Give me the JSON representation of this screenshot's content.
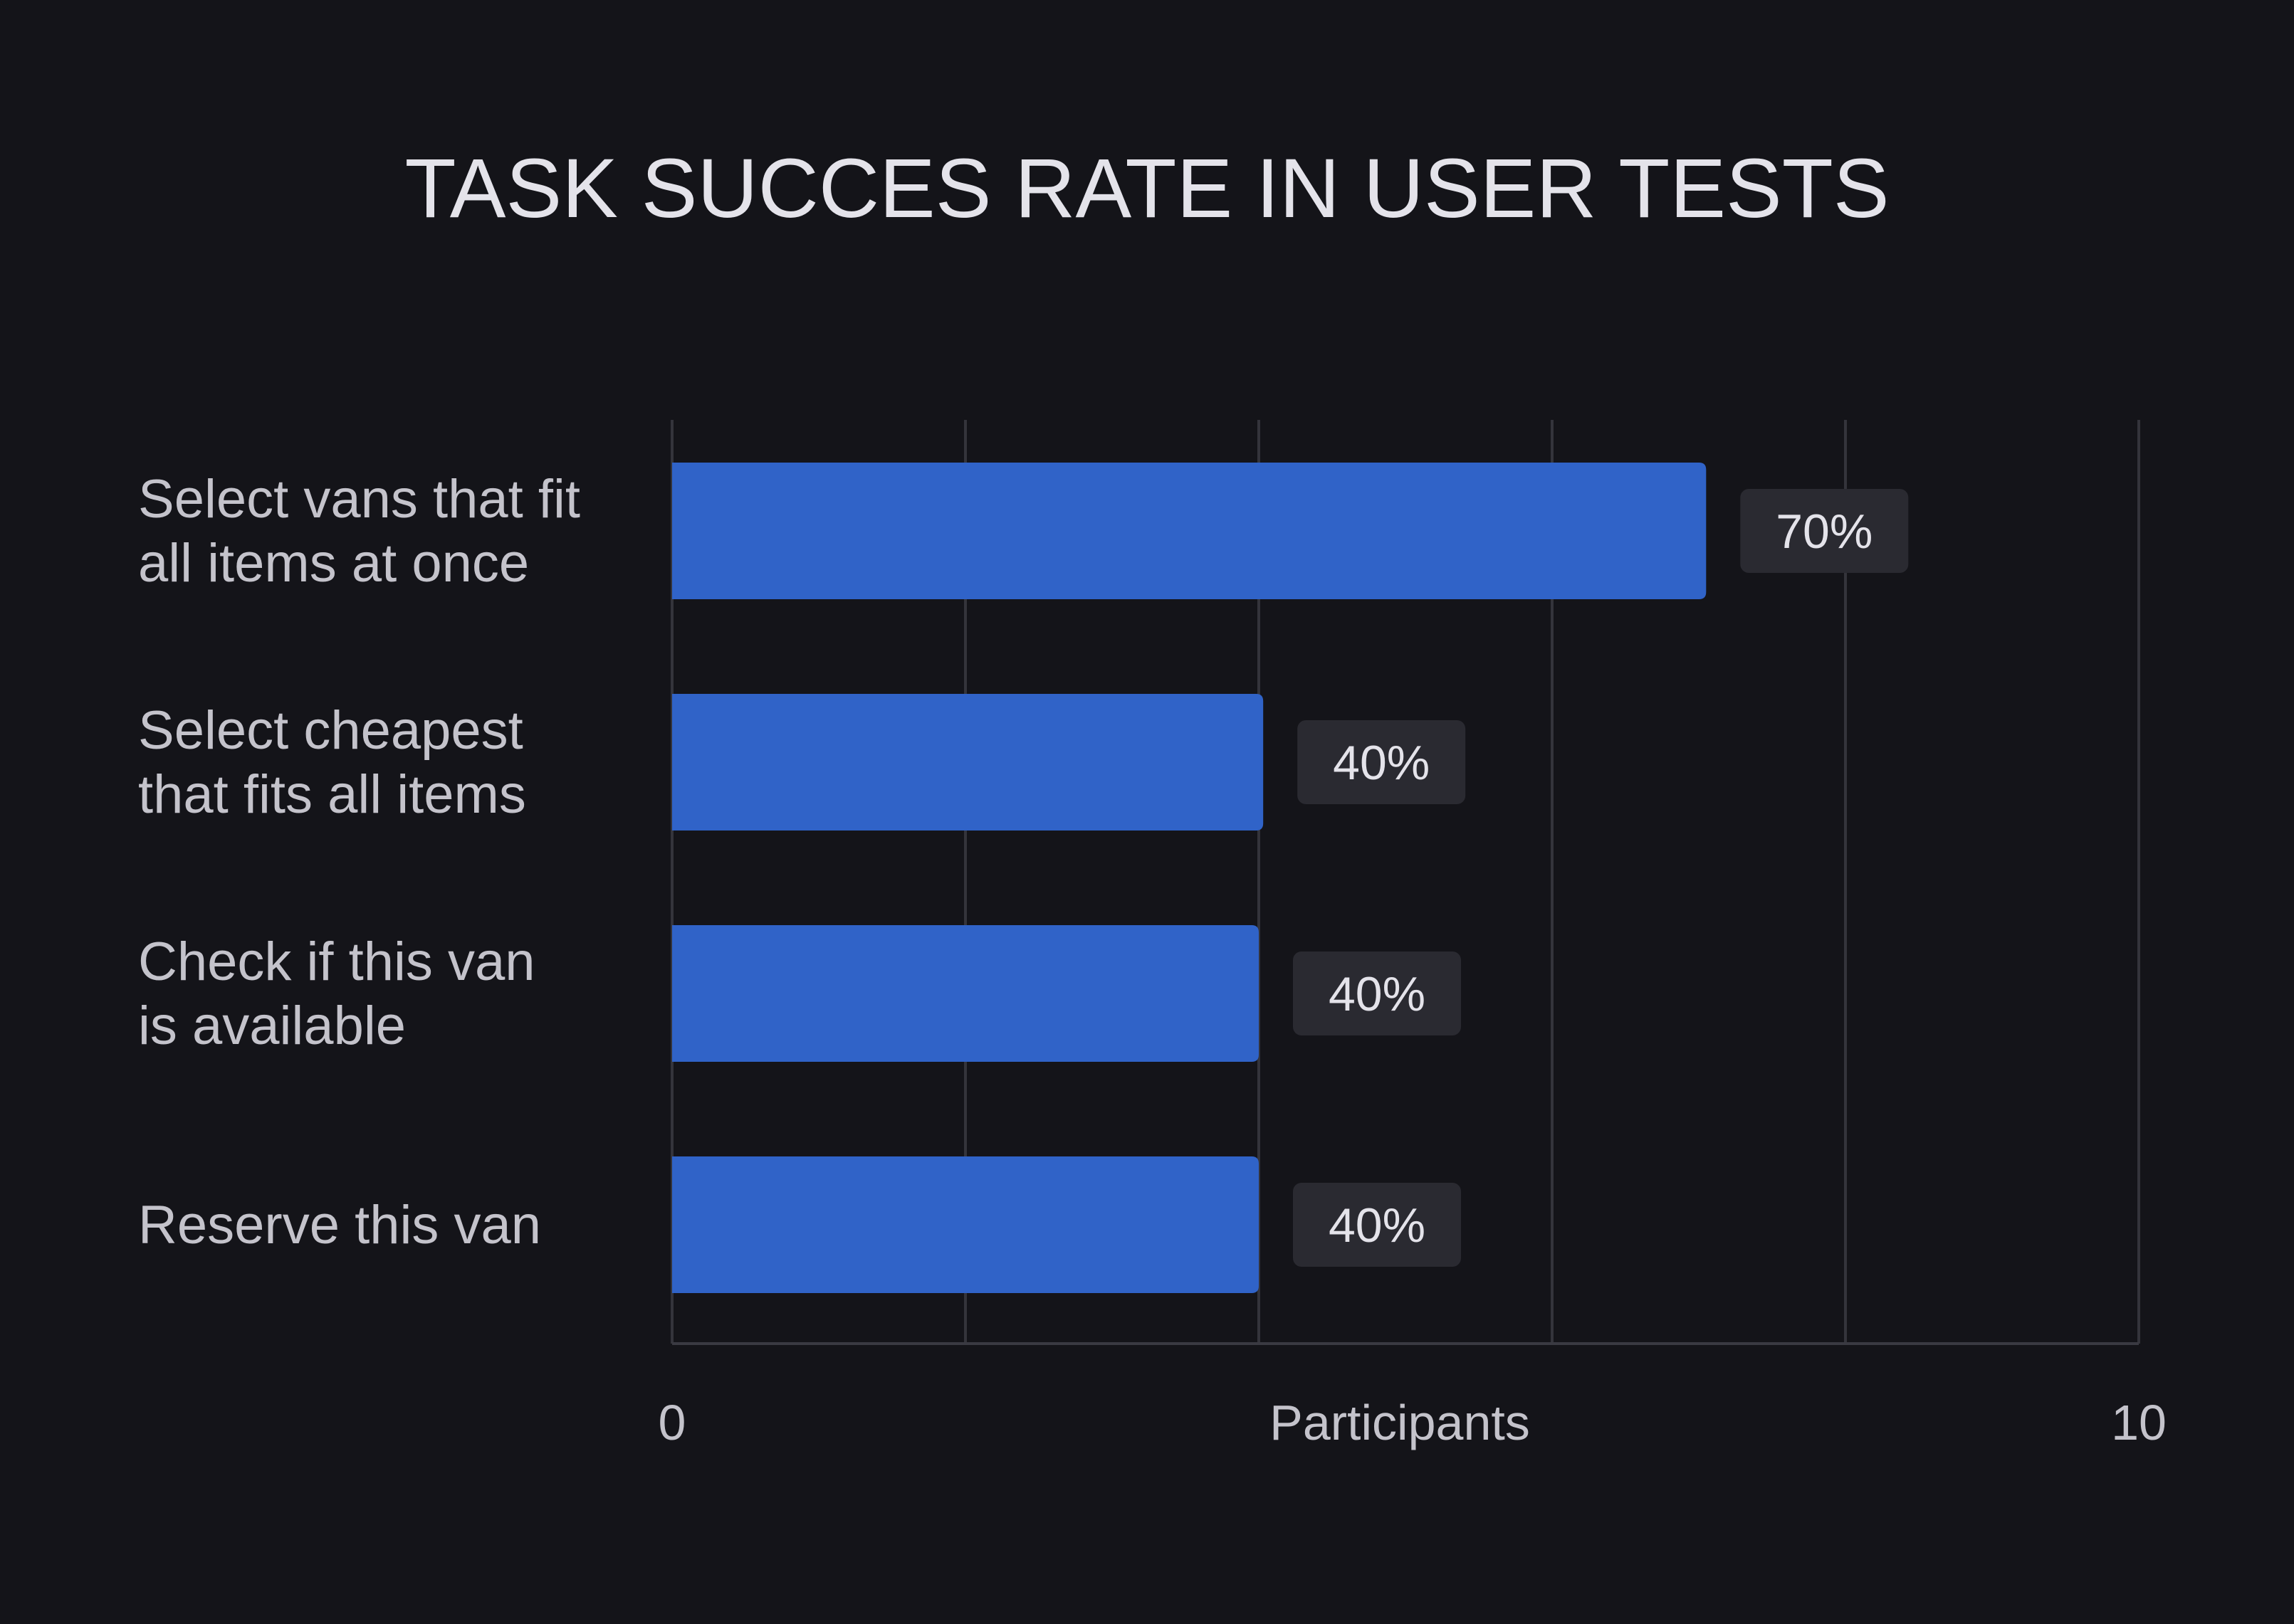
{
  "chart_data": {
    "type": "bar",
    "orientation": "horizontal",
    "title": "TASK SUCCES RATE IN USER TESTS",
    "categories": [
      [
        "Select vans that fit",
        "all items at once"
      ],
      [
        "Select cheapest",
        "that fits all items"
      ],
      [
        "Check if this van",
        "is available"
      ],
      [
        "Reserve this van"
      ]
    ],
    "values": [
      7.05,
      4.03,
      4.0,
      4.0
    ],
    "value_labels": [
      "70%",
      "40%",
      "40%",
      "40%"
    ],
    "xlabel": "Participants",
    "xlim": [
      0,
      10
    ],
    "x_tick_labels": [
      "0",
      "10"
    ],
    "x_grid": [
      0,
      2,
      4,
      6,
      8,
      10
    ],
    "grid": true,
    "colors": {
      "background": "#141419",
      "bar": "#3063c8",
      "value_box": "#2a2a31",
      "title": "#e4e3ea",
      "label": "#c4c3cb",
      "grid": "#34343b"
    }
  }
}
